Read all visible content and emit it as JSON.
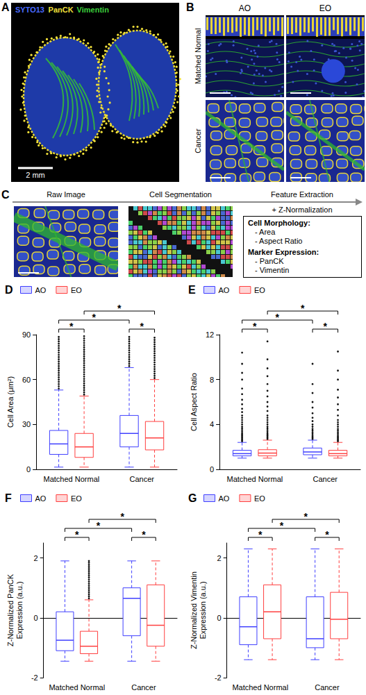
{
  "figure": {
    "A": {
      "letter": "A",
      "channels": [
        {
          "name": "SYTO13",
          "color": "#4a6bff"
        },
        {
          "name": "PanCK",
          "color": "#f2e13a"
        },
        {
          "name": "Vimentin",
          "color": "#3ccf3c"
        }
      ],
      "scale_bar": "2 mm"
    },
    "B": {
      "letter": "B",
      "columns": [
        "AO",
        "EO"
      ],
      "rows": [
        "Matched Normal",
        "Cancer"
      ]
    },
    "C": {
      "letter": "C",
      "steps": [
        "Raw Image",
        "Cell Segmentation",
        "Feature Extraction"
      ],
      "step_note": "+ Z-Normalization",
      "features": [
        {
          "heading": "Cell Morphology:",
          "items": [
            "- Area",
            "- Aspect Ratio"
          ]
        },
        {
          "heading": "Marker Expression:",
          "items": [
            "- PanCK",
            "- Vimentin"
          ]
        }
      ]
    }
  },
  "chart_data": [
    {
      "type": "boxplot",
      "letter": "D",
      "ylabel": "Cell Area (μm²)",
      "categories": [
        "Matched Normal",
        "Cancer"
      ],
      "ylim": [
        0,
        90
      ],
      "yticks": [
        0,
        30,
        60,
        90
      ],
      "grid": false,
      "legend": "upper left",
      "series": [
        {
          "name": "AO",
          "color": "#3f3fff",
          "values": [
            [
              1.5,
              10,
              17,
              26,
              53
            ],
            [
              1.5,
              15,
              24,
              36,
              68
            ]
          ],
          "outliers": [
            [
              54,
              55.5,
              57,
              58.5,
              60,
              61.5,
              63,
              64.5,
              66,
              67.5,
              69,
              70.5,
              72,
              73.5,
              75,
              76.5,
              78,
              79.5,
              81,
              82.5,
              84,
              85.5,
              87,
              88.5
            ],
            [
              69,
              70.5,
              72,
              73.5,
              75,
              76.5,
              78,
              79.5,
              81,
              82.5,
              84,
              85.5,
              87,
              88.5
            ]
          ]
        },
        {
          "name": "EO",
          "color": "#ff3f3f",
          "values": [
            [
              1.5,
              8,
              15,
              24,
              49
            ],
            [
              1.5,
              13,
              21,
              32,
              60
            ]
          ],
          "outliers": [
            [
              50,
              51.5,
              53,
              54.5,
              56,
              57.5,
              59,
              60.5,
              62,
              63.5,
              65,
              66.5,
              68,
              69.5,
              71,
              72.5,
              74,
              75.5,
              77,
              78.5,
              80,
              81.5,
              83,
              84.5,
              86,
              87.5,
              89
            ],
            [
              61,
              62.5,
              64,
              65.5,
              67,
              68.5,
              70,
              71.5,
              73,
              74.5,
              76,
              77.5,
              79,
              80.5,
              82,
              83.5,
              85,
              86.5,
              88
            ]
          ]
        }
      ],
      "significance": [
        {
          "label": "*",
          "from": [
            "Matched Normal",
            "AO"
          ],
          "to": [
            "Matched Normal",
            "EO"
          ]
        },
        {
          "label": "*",
          "from": [
            "Cancer",
            "AO"
          ],
          "to": [
            "Cancer",
            "EO"
          ]
        },
        {
          "label": "*",
          "from": [
            "Matched Normal",
            "AO"
          ],
          "to": [
            "Cancer",
            "AO"
          ]
        },
        {
          "label": "*",
          "from": [
            "Matched Normal",
            "EO"
          ],
          "to": [
            "Cancer",
            "EO"
          ]
        }
      ]
    },
    {
      "type": "boxplot",
      "letter": "E",
      "ylabel": "Cell Aspect Ratio",
      "categories": [
        "Matched Normal",
        "Cancer"
      ],
      "ylim": [
        0,
        12
      ],
      "yticks": [
        0,
        4,
        8,
        12
      ],
      "grid": false,
      "legend": "upper left",
      "series": [
        {
          "name": "AO",
          "color": "#3f3fff",
          "values": [
            [
              1.0,
              1.2,
              1.4,
              1.7,
              2.4
            ],
            [
              1.0,
              1.3,
              1.55,
              1.9,
              2.6
            ]
          ],
          "outliers": [
            [
              2.5,
              2.6,
              2.7,
              2.8,
              2.9,
              3.0,
              3.1,
              3.2,
              3.35,
              3.5,
              3.65,
              3.8,
              4.0,
              4.2,
              4.4,
              4.6,
              4.8,
              5.1,
              5.4,
              5.8,
              6.2,
              6.7,
              7.2,
              8.0,
              8.6,
              9.4,
              10.4
            ],
            [
              2.7,
              2.8,
              2.9,
              3.0,
              3.15,
              3.3,
              3.45,
              3.6,
              3.8,
              4.0,
              4.3,
              4.6,
              5.0,
              5.5,
              6.0,
              6.8,
              7.6,
              9.4
            ]
          ]
        },
        {
          "name": "EO",
          "color": "#ff3f3f",
          "values": [
            [
              1.0,
              1.2,
              1.45,
              1.75,
              2.6
            ],
            [
              1.0,
              1.2,
              1.4,
              1.7,
              2.4
            ]
          ],
          "outliers": [
            [
              2.7,
              2.8,
              2.9,
              3.0,
              3.1,
              3.2,
              3.35,
              3.5,
              3.65,
              3.8,
              4.0,
              4.2,
              4.4,
              4.6,
              4.8,
              5.2,
              5.6,
              6.0,
              6.5,
              7.0,
              7.6,
              8.3,
              9.0,
              9.8,
              11.4
            ],
            [
              2.5,
              2.6,
              2.7,
              2.8,
              2.9,
              3.0,
              3.15,
              3.3,
              3.45,
              3.6,
              3.8,
              4.0,
              4.2,
              4.4,
              4.8,
              5.3,
              5.8,
              6.4,
              7.1,
              8.0,
              8.8,
              10.5
            ]
          ]
        }
      ],
      "significance": [
        {
          "label": "*",
          "from": [
            "Matched Normal",
            "AO"
          ],
          "to": [
            "Matched Normal",
            "EO"
          ]
        },
        {
          "label": "*",
          "from": [
            "Cancer",
            "AO"
          ],
          "to": [
            "Cancer",
            "EO"
          ]
        },
        {
          "label": "*",
          "from": [
            "Matched Normal",
            "AO"
          ],
          "to": [
            "Cancer",
            "AO"
          ]
        },
        {
          "label": "*",
          "from": [
            "Matched Normal",
            "EO"
          ],
          "to": [
            "Cancer",
            "EO"
          ]
        }
      ]
    },
    {
      "type": "boxplot",
      "letter": "F",
      "ylabel": "Z-Normalized PanCK Expression (a.u.)",
      "categories": [
        "Matched Normal",
        "Cancer"
      ],
      "ylim": [
        -2,
        2.5
      ],
      "yticks": [
        -2,
        0,
        2
      ],
      "grid": false,
      "legend": "upper left",
      "series": [
        {
          "name": "AO",
          "color": "#3f3fff",
          "values": [
            [
              -1.45,
              -1.1,
              -0.75,
              0.2,
              1.9
            ],
            [
              -1.45,
              -0.6,
              0.65,
              1.0,
              1.9
            ]
          ]
        },
        {
          "name": "EO",
          "color": "#ff3f3f",
          "values": [
            [
              -1.45,
              -1.2,
              -0.95,
              -0.45,
              0.6
            ],
            [
              -1.45,
              -0.95,
              -0.25,
              1.1,
              1.9
            ]
          ],
          "outliers": [
            [
              0.65,
              0.72,
              0.79,
              0.86,
              0.93,
              1.0,
              1.07,
              1.14,
              1.21,
              1.28,
              1.35,
              1.42,
              1.49,
              1.56,
              1.63,
              1.7,
              1.77,
              1.84,
              1.9
            ],
            []
          ]
        }
      ],
      "significance": [
        {
          "label": "*",
          "from": [
            "Matched Normal",
            "AO"
          ],
          "to": [
            "Matched Normal",
            "EO"
          ]
        },
        {
          "label": "*",
          "from": [
            "Cancer",
            "AO"
          ],
          "to": [
            "Cancer",
            "EO"
          ]
        },
        {
          "label": "*",
          "from": [
            "Matched Normal",
            "AO"
          ],
          "to": [
            "Cancer",
            "AO"
          ]
        },
        {
          "label": "*",
          "from": [
            "Matched Normal",
            "EO"
          ],
          "to": [
            "Cancer",
            "EO"
          ]
        }
      ]
    },
    {
      "type": "boxplot",
      "letter": "G",
      "ylabel": "Z-Normalized Vimentin Expression (a.u.)",
      "categories": [
        "Matched Normal",
        "Cancer"
      ],
      "ylim": [
        -2,
        2.5
      ],
      "yticks": [
        -2,
        0,
        2
      ],
      "grid": false,
      "legend": "upper left",
      "series": [
        {
          "name": "AO",
          "color": "#3f3fff",
          "values": [
            [
              -1.4,
              -0.9,
              -0.3,
              0.7,
              2.3
            ],
            [
              -1.4,
              -1.0,
              -0.7,
              0.7,
              2.3
            ]
          ]
        },
        {
          "name": "EO",
          "color": "#ff3f3f",
          "values": [
            [
              -1.4,
              -0.7,
              0.2,
              1.1,
              2.3
            ],
            [
              -1.4,
              -0.7,
              -0.05,
              0.85,
              2.3
            ]
          ]
        }
      ],
      "significance": [
        {
          "label": "*",
          "from": [
            "Matched Normal",
            "AO"
          ],
          "to": [
            "Matched Normal",
            "EO"
          ]
        },
        {
          "label": "*",
          "from": [
            "Cancer",
            "AO"
          ],
          "to": [
            "Cancer",
            "EO"
          ]
        },
        {
          "label": "*",
          "from": [
            "Matched Normal",
            "AO"
          ],
          "to": [
            "Cancer",
            "AO"
          ]
        },
        {
          "label": "*",
          "from": [
            "Matched Normal",
            "EO"
          ],
          "to": [
            "Cancer",
            "EO"
          ]
        }
      ]
    }
  ]
}
